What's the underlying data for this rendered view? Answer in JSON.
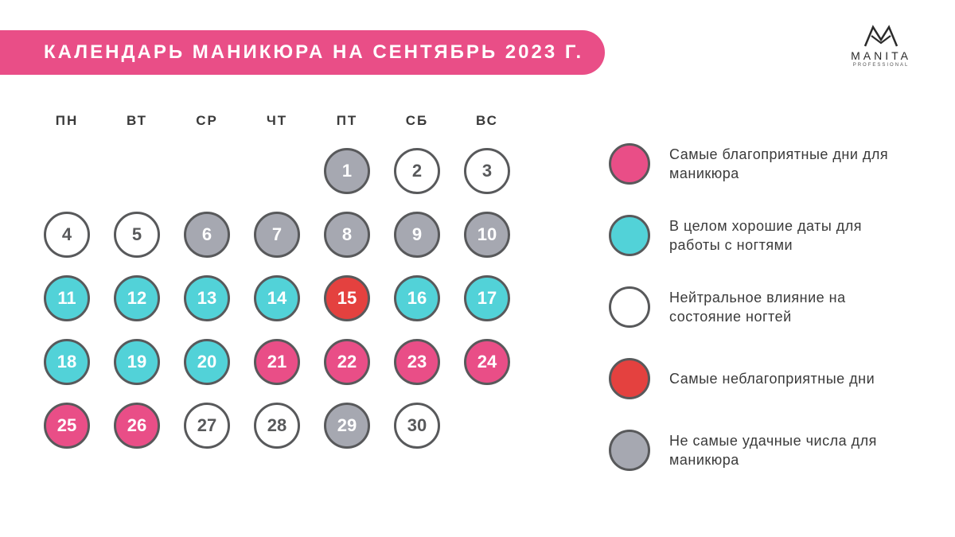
{
  "title": "КАЛЕНДАРЬ МАНИКЮРА НА СЕНТЯБРЬ 2023 Г.",
  "brand": {
    "name": "MANITA",
    "sub": "PROFESSIONAL"
  },
  "colors": {
    "title_bg": "#e94e87",
    "border": "#58595b",
    "text_dark": "#58595b",
    "text_light": "#ffffff",
    "favorable": "#e94e87",
    "good": "#52d2d8",
    "neutral": "#ffffff",
    "unfavorable": "#e4413f",
    "not_best": "#a6a8b1"
  },
  "weekdays": [
    "ПН",
    "ВТ",
    "СР",
    "ЧТ",
    "ПТ",
    "СБ",
    "ВС"
  ],
  "days": [
    {
      "n": "",
      "t": "empty"
    },
    {
      "n": "",
      "t": "empty"
    },
    {
      "n": "",
      "t": "empty"
    },
    {
      "n": "",
      "t": "empty"
    },
    {
      "n": "1",
      "t": "not_best"
    },
    {
      "n": "2",
      "t": "neutral"
    },
    {
      "n": "3",
      "t": "neutral"
    },
    {
      "n": "4",
      "t": "neutral"
    },
    {
      "n": "5",
      "t": "neutral"
    },
    {
      "n": "6",
      "t": "not_best"
    },
    {
      "n": "7",
      "t": "not_best"
    },
    {
      "n": "8",
      "t": "not_best"
    },
    {
      "n": "9",
      "t": "not_best"
    },
    {
      "n": "10",
      "t": "not_best"
    },
    {
      "n": "11",
      "t": "good"
    },
    {
      "n": "12",
      "t": "good"
    },
    {
      "n": "13",
      "t": "good"
    },
    {
      "n": "14",
      "t": "good"
    },
    {
      "n": "15",
      "t": "unfavorable"
    },
    {
      "n": "16",
      "t": "good"
    },
    {
      "n": "17",
      "t": "good"
    },
    {
      "n": "18",
      "t": "good"
    },
    {
      "n": "19",
      "t": "good"
    },
    {
      "n": "20",
      "t": "good"
    },
    {
      "n": "21",
      "t": "favorable"
    },
    {
      "n": "22",
      "t": "favorable"
    },
    {
      "n": "23",
      "t": "favorable"
    },
    {
      "n": "24",
      "t": "favorable"
    },
    {
      "n": "25",
      "t": "favorable"
    },
    {
      "n": "26",
      "t": "favorable"
    },
    {
      "n": "27",
      "t": "neutral"
    },
    {
      "n": "28",
      "t": "neutral"
    },
    {
      "n": "29",
      "t": "not_best"
    },
    {
      "n": "30",
      "t": "neutral"
    }
  ],
  "legend": [
    {
      "t": "favorable",
      "label": "Самые благоприятные дни для маникюра"
    },
    {
      "t": "good",
      "label": "В целом хорошие даты для работы с ногтями"
    },
    {
      "t": "neutral",
      "label": "Нейтральное влияние на состояние ногтей"
    },
    {
      "t": "unfavorable",
      "label": "Самые неблагоприятные дни"
    },
    {
      "t": "not_best",
      "label": "Не самые удачные числа для маникюра"
    }
  ],
  "type_text_color": {
    "favorable": "light",
    "good": "light",
    "neutral": "dark",
    "unfavorable": "light",
    "not_best": "light"
  }
}
